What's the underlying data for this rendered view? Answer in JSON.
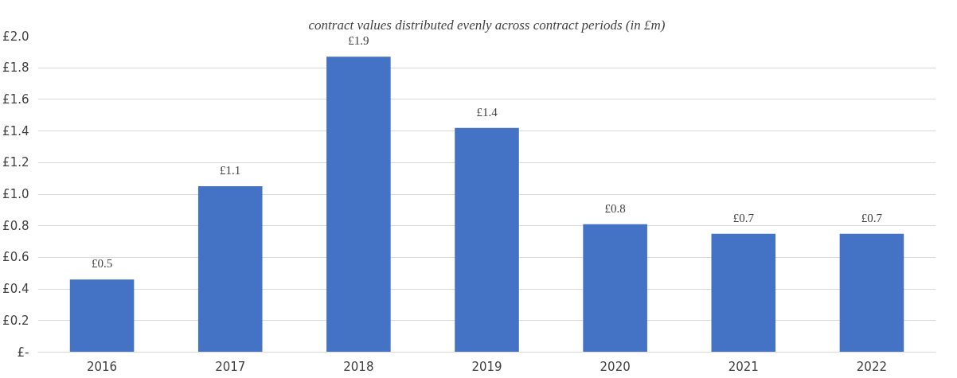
{
  "chart_data": {
    "type": "bar",
    "title": "contract values distributed evenly across contract periods (in £m)",
    "categories": [
      "2016",
      "2017",
      "2018",
      "2019",
      "2020",
      "2021",
      "2022"
    ],
    "values": [
      0.46,
      1.05,
      1.87,
      1.42,
      0.81,
      0.75,
      0.75
    ],
    "value_labels": [
      "£0.5",
      "£1.1",
      "£1.9",
      "£1.4",
      "£0.8",
      "£0.7",
      "£0.7"
    ],
    "color": "#4472c4",
    "ylim": [
      0,
      2.0
    ],
    "yticks": [
      {
        "value": 0,
        "label": "£-"
      },
      {
        "value": 0.2,
        "label": "£0.2"
      },
      {
        "value": 0.4,
        "label": "£0.4"
      },
      {
        "value": 0.6,
        "label": "£0.6"
      },
      {
        "value": 0.8,
        "label": "£0.8"
      },
      {
        "value": 1.0,
        "label": "£1.0"
      },
      {
        "value": 1.2,
        "label": "£1.2"
      },
      {
        "value": 1.4,
        "label": "£1.4"
      },
      {
        "value": 1.6,
        "label": "£1.6"
      },
      {
        "value": 1.8,
        "label": "£1.8"
      },
      {
        "value": 2.0,
        "label": "£2.0"
      }
    ],
    "grid": "y"
  }
}
